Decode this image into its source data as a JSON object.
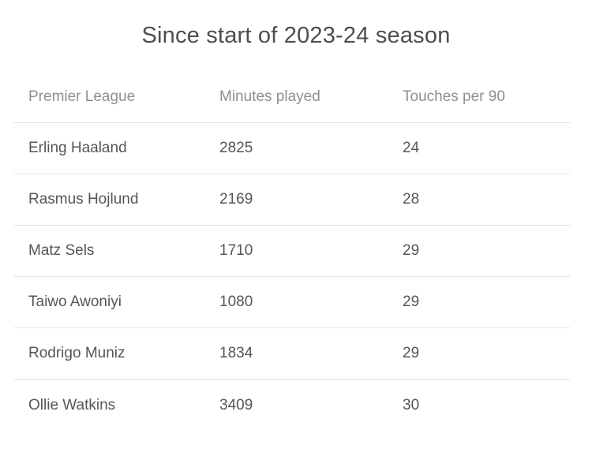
{
  "chart_data": {
    "type": "table",
    "title": "Since start of 2023-24 season",
    "columns": [
      "Premier League",
      "Minutes played",
      "Touches per 90"
    ],
    "rows": [
      [
        "Erling Haaland",
        "2825",
        "24"
      ],
      [
        "Rasmus Hojlund",
        "2169",
        "28"
      ],
      [
        "Matz Sels",
        "1710",
        "29"
      ],
      [
        "Taiwo Awoniyi",
        "1080",
        "29"
      ],
      [
        "Rodrigo Muniz",
        "1834",
        "29"
      ],
      [
        "Ollie Watkins",
        "3409",
        "30"
      ]
    ],
    "layout_hints": {
      "row_divider": "thin light gray line between rows",
      "alignment": "all columns left-aligned",
      "grid": "horizontal dividers only"
    }
  },
  "colors": {
    "background": "#ffffff",
    "title_text": "#4b4d51",
    "header_text": "#8d8f92",
    "body_text": "#54565a",
    "divider": "#e3e3e3"
  }
}
